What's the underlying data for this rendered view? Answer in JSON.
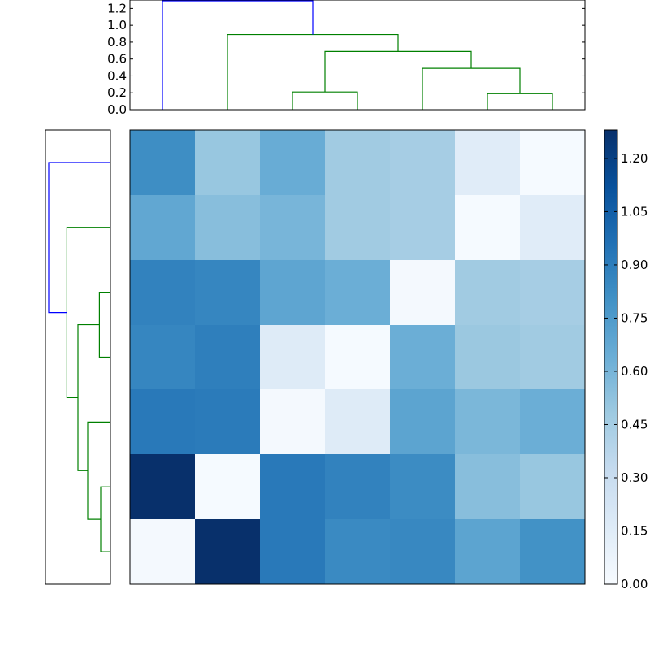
{
  "chart_data": [
    {
      "type": "heatmap",
      "panel": "main",
      "rows": 7,
      "cols": 7,
      "colormap": "Blues",
      "values": [
        [
          0.82,
          0.5,
          0.65,
          0.47,
          0.45,
          0.15,
          0.01
        ],
        [
          0.68,
          0.55,
          0.6,
          0.47,
          0.45,
          0.01,
          0.15
        ],
        [
          0.88,
          0.86,
          0.69,
          0.64,
          0.02,
          0.47,
          0.45
        ],
        [
          0.86,
          0.89,
          0.16,
          0.01,
          0.64,
          0.49,
          0.47
        ],
        [
          0.92,
          0.91,
          0.02,
          0.16,
          0.7,
          0.59,
          0.64
        ],
        [
          1.28,
          0.01,
          0.92,
          0.88,
          0.83,
          0.55,
          0.5
        ],
        [
          0.02,
          1.28,
          0.92,
          0.84,
          0.85,
          0.7,
          0.8
        ]
      ],
      "colorbar": {
        "range": [
          0.0,
          1.28
        ],
        "tick_values": [
          0.0,
          0.15,
          0.3,
          0.45,
          0.6,
          0.75,
          0.9,
          1.05,
          1.2
        ],
        "tick_labels": [
          "0.00",
          "0.15",
          "0.30",
          "0.45",
          "0.60",
          "0.75",
          "0.90",
          "1.05",
          "1.20"
        ]
      },
      "x_ticks": [],
      "y_ticks": []
    },
    {
      "type": "dendrogram",
      "panel": "top",
      "orientation": "top",
      "leaves": 7,
      "ylim": [
        0.0,
        1.3
      ],
      "y_tick_values": [
        0.0,
        0.2,
        0.4,
        0.6,
        0.8,
        1.0,
        1.2
      ],
      "y_tick_labels": [
        "0.0",
        "0.2",
        "0.4",
        "0.6",
        "0.8",
        "1.0",
        "1.2"
      ],
      "links": [
        {
          "left": 2,
          "right": 3,
          "height": 0.21,
          "color": "#008000"
        },
        {
          "left": 5,
          "right": 6,
          "height": 0.19,
          "color": "#008000"
        },
        {
          "left": 4,
          "right": 8,
          "height": 0.49,
          "color": "#008000"
        },
        {
          "left": 7,
          "right": 9,
          "height": 0.69,
          "color": "#008000"
        },
        {
          "left": 1,
          "right": 10,
          "height": 0.89,
          "color": "#008000"
        },
        {
          "left": 0,
          "right": 11,
          "height": 1.29,
          "color": "#0000ff"
        }
      ]
    },
    {
      "type": "dendrogram",
      "panel": "left",
      "orientation": "left",
      "leaves": 7,
      "links": [
        {
          "left": 5,
          "right": 6,
          "height": 0.15,
          "color": "#008000"
        },
        {
          "left": 2,
          "right": 3,
          "height": 0.17,
          "color": "#008000"
        },
        {
          "left": 7,
          "right": 4,
          "height": 0.35,
          "color": "#008000"
        },
        {
          "left": 9,
          "right": 8,
          "height": 0.5,
          "color": "#008000"
        },
        {
          "left": 10,
          "right": 1,
          "height": 0.67,
          "color": "#008000"
        },
        {
          "left": 11,
          "right": 0,
          "height": 0.95,
          "color": "#0000ff"
        }
      ]
    }
  ]
}
